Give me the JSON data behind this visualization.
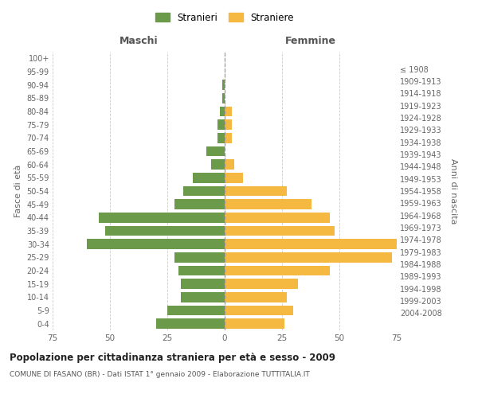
{
  "age_groups": [
    "0-4",
    "5-9",
    "10-14",
    "15-19",
    "20-24",
    "25-29",
    "30-34",
    "35-39",
    "40-44",
    "45-49",
    "50-54",
    "55-59",
    "60-64",
    "65-69",
    "70-74",
    "75-79",
    "80-84",
    "85-89",
    "90-94",
    "95-99",
    "100+"
  ],
  "birth_years": [
    "2004-2008",
    "1999-2003",
    "1994-1998",
    "1989-1993",
    "1984-1988",
    "1979-1983",
    "1974-1978",
    "1969-1973",
    "1964-1968",
    "1959-1963",
    "1954-1958",
    "1949-1953",
    "1944-1948",
    "1939-1943",
    "1934-1938",
    "1929-1933",
    "1924-1928",
    "1919-1923",
    "1914-1918",
    "1909-1913",
    "≤ 1908"
  ],
  "maschi": [
    30,
    25,
    19,
    19,
    20,
    22,
    60,
    52,
    55,
    22,
    18,
    14,
    6,
    8,
    3,
    3,
    2,
    1,
    1,
    0,
    0
  ],
  "femmine": [
    26,
    30,
    27,
    32,
    46,
    73,
    75,
    48,
    46,
    38,
    27,
    8,
    4,
    0,
    3,
    3,
    3,
    0,
    0,
    0,
    0
  ],
  "male_color": "#6b9a4b",
  "female_color": "#f5b942",
  "grid_color": "#cccccc",
  "title": "Popolazione per cittadinanza straniera per età e sesso - 2009",
  "subtitle": "COMUNE DI FASANO (BR) - Dati ISTAT 1° gennaio 2009 - Elaborazione TUTTITALIA.IT",
  "xlabel_left": "Maschi",
  "xlabel_right": "Femmine",
  "ylabel_left": "Fasce di età",
  "ylabel_right": "Anni di nascita",
  "legend_male": "Stranieri",
  "legend_female": "Straniere",
  "xlim": 75
}
